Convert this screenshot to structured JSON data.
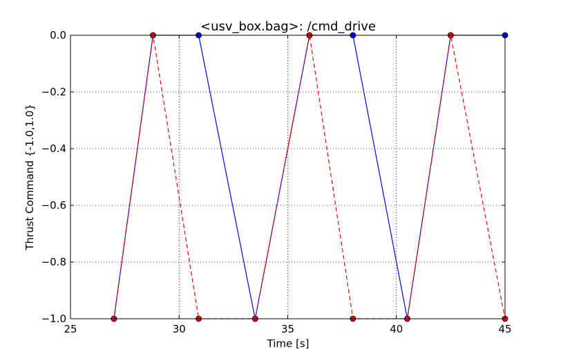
{
  "chart_data": {
    "type": "line",
    "title": "<usv_box.bag>: /cmd_drive",
    "xlabel": "Time [s]",
    "ylabel": "Thrust Command {-1.0,1.0}",
    "xlim": [
      25,
      45
    ],
    "ylim": [
      -1.0,
      0.0
    ],
    "xticks": [
      25,
      30,
      35,
      40,
      45
    ],
    "xtick_labels": [
      "25",
      "30",
      "35",
      "40",
      "45"
    ],
    "yticks": [
      0.0,
      -0.2,
      -0.4,
      -0.6,
      -0.8,
      -1.0
    ],
    "ytick_labels": [
      "0.0",
      "−0.2",
      "−0.4",
      "−0.6",
      "−0.8",
      "−1.0"
    ],
    "grid": true,
    "series": [
      {
        "color": "#0000ff",
        "marker_color": "#0000ff",
        "line_style": "solid",
        "x": [
          27.0,
          28.8,
          30.9,
          33.5,
          36.0,
          38.0,
          40.5,
          42.5,
          45.0
        ],
        "y": [
          -1.0,
          0.0,
          0.0,
          -1.0,
          0.0,
          0.0,
          -1.0,
          0.0,
          0.0
        ]
      },
      {
        "color": "#ff0000",
        "marker_color": "#ff0000",
        "line_style": "dashed",
        "x": [
          27.0,
          28.8,
          30.9,
          33.5,
          36.0,
          38.0,
          40.5,
          42.5,
          45.0
        ],
        "y": [
          -1.0,
          0.0,
          -1.0,
          -1.0,
          0.0,
          -1.0,
          -1.0,
          0.0,
          -1.0
        ]
      }
    ]
  }
}
